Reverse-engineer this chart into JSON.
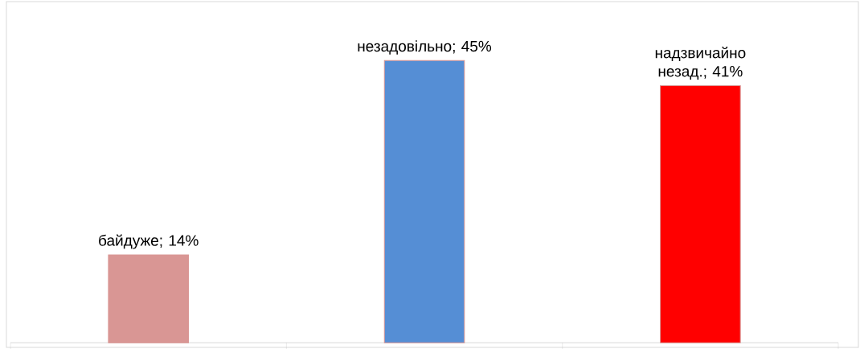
{
  "chart_data": {
    "type": "bar",
    "categories": [
      null,
      null,
      null
    ],
    "values": [
      14,
      45,
      41
    ],
    "colors": [
      "#d99694",
      "#558ed5",
      "#ff0000"
    ],
    "value_labels": [
      "байдуже; 14%",
      "незадовільно; 45%",
      "надзвичайно незад.; 41%"
    ]
  }
}
